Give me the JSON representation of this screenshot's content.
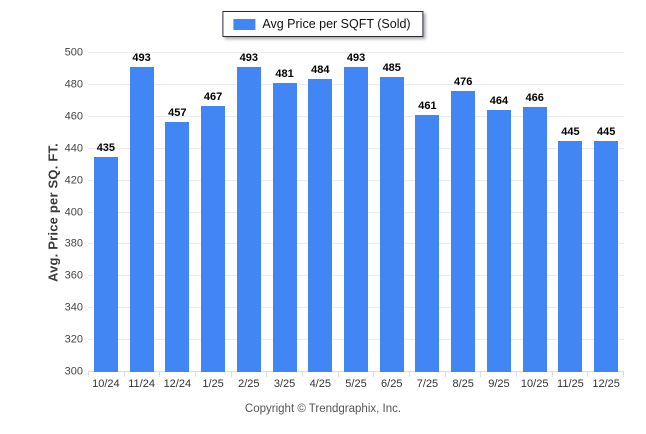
{
  "legend": {
    "label": "Avg Price per SQFT (Sold)"
  },
  "footer": {
    "copyright": "Copyright © Trendgraphix, Inc."
  },
  "colors": {
    "bar": "#4285F4",
    "gridline": "#ececec",
    "baseline": "#dcdcdc"
  },
  "chart_data": {
    "type": "bar",
    "title": "",
    "xlabel": "",
    "ylabel": "Avg. Price per SQ. FT.",
    "categories": [
      "10/24",
      "11/24",
      "12/24",
      "1/25",
      "2/25",
      "3/25",
      "4/25",
      "5/25",
      "6/25",
      "7/25",
      "8/25",
      "9/25",
      "10/25",
      "11/25",
      "12/25"
    ],
    "values": [
      435,
      493,
      457,
      467,
      493,
      481,
      484,
      493,
      485,
      461,
      476,
      464,
      466,
      445,
      445
    ],
    "series_name": "Avg Price per SQFT (Sold)",
    "ylim": [
      300,
      500
    ],
    "ytick_step": 20,
    "yticks": [
      300,
      320,
      340,
      360,
      380,
      400,
      420,
      440,
      460,
      480,
      500
    ],
    "grid": true,
    "legend_position": "top",
    "bar_color": "#4285F4"
  }
}
